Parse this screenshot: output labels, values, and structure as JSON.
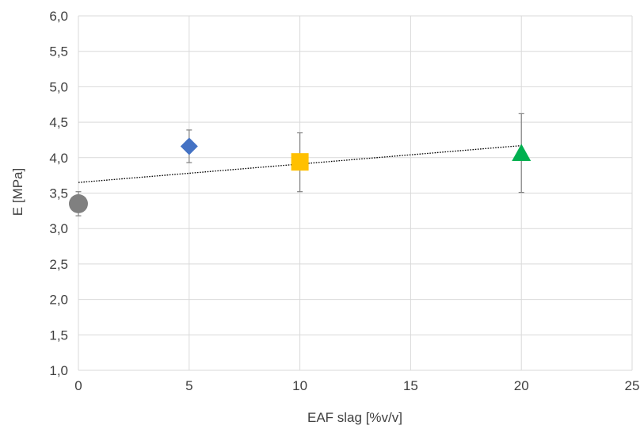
{
  "chart_data": {
    "type": "scatter",
    "xlabel": "EAF slag [%v/v]",
    "ylabel": "E [MPa]",
    "xlim": [
      0,
      25
    ],
    "ylim": [
      1.0,
      6.0
    ],
    "x_ticks": [
      "0",
      "5",
      "10",
      "15",
      "20",
      "25"
    ],
    "y_ticks": [
      "1,0",
      "1,5",
      "2,0",
      "2,5",
      "3,0",
      "3,5",
      "4,0",
      "4,5",
      "5,0",
      "5,5",
      "6,0"
    ],
    "grid": true,
    "legend": "none",
    "points": [
      {
        "x": 0,
        "y": 3.35,
        "err_low": 3.18,
        "err_high": 3.52,
        "marker": "circle",
        "color": "#808080"
      },
      {
        "x": 5,
        "y": 4.16,
        "err_low": 3.93,
        "err_high": 4.39,
        "marker": "diamond",
        "color": "#4472C4"
      },
      {
        "x": 10,
        "y": 3.94,
        "err_low": 3.52,
        "err_high": 4.35,
        "marker": "square",
        "color": "#FFC000"
      },
      {
        "x": 20,
        "y": 4.06,
        "err_low": 3.51,
        "err_high": 4.62,
        "marker": "triangle",
        "color": "#00B050"
      }
    ],
    "trendline": {
      "style": "dotted",
      "x_start": 0,
      "y_start": 3.65,
      "x_end": 20,
      "y_end": 4.17,
      "color": "#000000"
    },
    "gridline_color": "#D9D9D9",
    "error_bar_color": "#808080"
  }
}
